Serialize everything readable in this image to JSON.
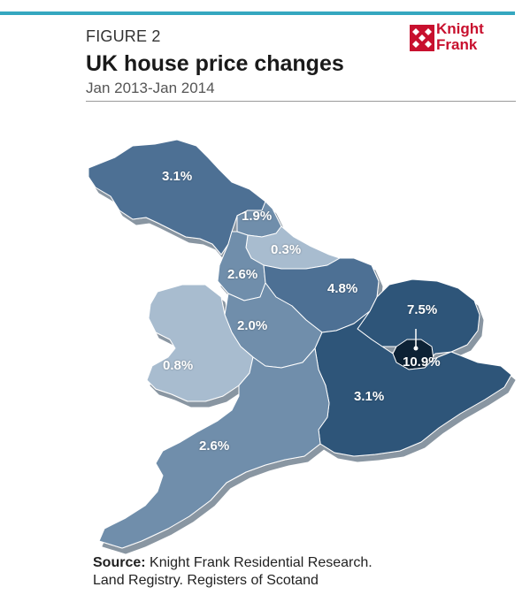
{
  "figure": {
    "label": "FIGURE 2",
    "title": "UK house price changes",
    "subtitle": "Jan 2013-Jan 2014"
  },
  "logo": {
    "line1": "Knight",
    "line2": "Frank",
    "color": "#c8102e"
  },
  "regions": [
    {
      "key": "scotland",
      "value": "3.1%"
    },
    {
      "key": "north-east",
      "value": "1.9%"
    },
    {
      "key": "yorkshire",
      "value": "0.3%"
    },
    {
      "key": "north-west",
      "value": "2.6%"
    },
    {
      "key": "east-midlands",
      "value": "4.8%"
    },
    {
      "key": "west-midlands",
      "value": "2.0%"
    },
    {
      "key": "wales",
      "value": "0.8%"
    },
    {
      "key": "east",
      "value": "7.5%"
    },
    {
      "key": "london",
      "value": "10.9%"
    },
    {
      "key": "south-east",
      "value": "3.1%"
    },
    {
      "key": "south-west",
      "value": "2.6%"
    }
  ],
  "colors": {
    "accent_bar": "#35a7c0",
    "lightest": "#a8bccf",
    "light": "#8fa8c0",
    "mid": "#6f8eab",
    "dark": "#4e7094",
    "darker": "#2e5479",
    "darkest": "#0d2036"
  },
  "source": {
    "label": "Source:",
    "text": " Knight Frank Residential Research.",
    "line2": "Land Registry. Registers of Scotand"
  }
}
